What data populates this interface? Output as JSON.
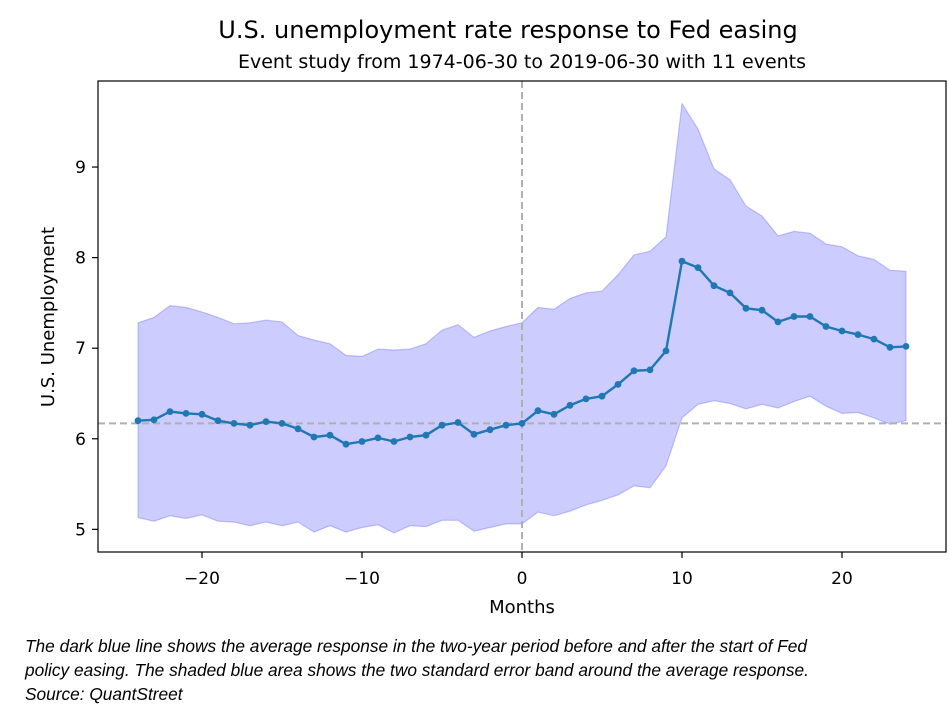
{
  "chart_data": {
    "type": "line",
    "title": "U.S. unemployment rate response to Fed easing",
    "subtitle": "Event study from 1974-06-30 to 2019-06-30 with 11 events",
    "xlabel": "Months",
    "ylabel": "U.S. Unemployment",
    "xlim": [
      -26.5,
      26.5
    ],
    "ylim": [
      4.75,
      9.95
    ],
    "xticks": [
      -20,
      -10,
      0,
      10,
      20
    ],
    "xtick_labels": [
      "−20",
      "−10",
      "0",
      "10",
      "20"
    ],
    "yticks": [
      5,
      6,
      7,
      8,
      9
    ],
    "ytick_labels": [
      "5",
      "6",
      "7",
      "8",
      "9"
    ],
    "grid": false,
    "reference_lines": {
      "x": 0,
      "y": 6.17
    },
    "x": [
      -24,
      -23,
      -22,
      -21,
      -20,
      -19,
      -18,
      -17,
      -16,
      -15,
      -14,
      -13,
      -12,
      -11,
      -10,
      -9,
      -8,
      -7,
      -6,
      -5,
      -4,
      -3,
      -2,
      -1,
      0,
      1,
      2,
      3,
      4,
      5,
      6,
      7,
      8,
      9,
      10,
      11,
      12,
      13,
      14,
      15,
      16,
      17,
      18,
      19,
      20,
      21,
      22,
      23,
      24
    ],
    "series": [
      {
        "values": [
          6.2,
          6.21,
          6.3,
          6.28,
          6.27,
          6.2,
          6.17,
          6.15,
          6.19,
          6.17,
          6.11,
          6.02,
          6.04,
          5.94,
          5.97,
          6.01,
          5.97,
          6.02,
          6.04,
          6.15,
          6.18,
          6.05,
          6.1,
          6.15,
          6.17,
          6.31,
          6.27,
          6.37,
          6.44,
          6.47,
          6.6,
          6.75,
          6.76,
          6.97,
          7.96,
          7.89,
          7.69,
          7.61,
          7.44,
          7.42,
          7.29,
          7.35,
          7.35,
          7.24,
          7.19,
          7.15,
          7.1,
          7.01,
          7.02
        ],
        "color": "#1f77b4"
      }
    ],
    "band": {
      "upper": [
        7.28,
        7.34,
        7.47,
        7.45,
        7.4,
        7.34,
        7.27,
        7.28,
        7.31,
        7.29,
        7.14,
        7.09,
        7.05,
        6.92,
        6.91,
        6.99,
        6.98,
        6.99,
        7.05,
        7.2,
        7.26,
        7.12,
        7.19,
        7.24,
        7.28,
        7.45,
        7.43,
        7.55,
        7.61,
        7.63,
        7.81,
        8.03,
        8.07,
        8.23,
        9.7,
        9.42,
        8.98,
        8.86,
        8.57,
        8.46,
        8.24,
        8.29,
        8.27,
        8.15,
        8.12,
        8.02,
        7.98,
        7.86,
        7.85
      ],
      "lower": [
        5.13,
        5.09,
        5.15,
        5.12,
        5.16,
        5.09,
        5.08,
        5.04,
        5.08,
        5.04,
        5.08,
        4.97,
        5.04,
        4.97,
        5.02,
        5.05,
        4.96,
        5.04,
        5.03,
        5.1,
        5.1,
        4.98,
        5.02,
        5.06,
        5.06,
        5.19,
        5.15,
        5.2,
        5.27,
        5.32,
        5.38,
        5.48,
        5.46,
        5.7,
        6.23,
        6.38,
        6.42,
        6.39,
        6.33,
        6.38,
        6.34,
        6.41,
        6.47,
        6.36,
        6.28,
        6.29,
        6.23,
        6.16,
        6.2
      ],
      "color": "#0000ff"
    }
  },
  "caption": {
    "line1": "The dark blue line shows the average response in the two-year period before and after the start of Fed",
    "line2": "policy easing. The shaded blue area shows the two standard error band around the average response.",
    "line3": "Source: QuantStreet"
  }
}
